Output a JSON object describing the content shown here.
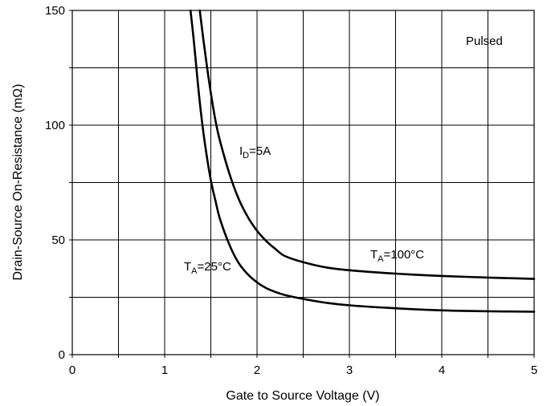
{
  "chart_data": {
    "type": "line",
    "xlabel": "Gate to Source Voltage (V)",
    "ylabel": "Drain-Source On-Resistance (mΩ)",
    "xlim": [
      0,
      5
    ],
    "ylim": [
      0,
      150
    ],
    "x_ticks": [
      "0",
      "1",
      "2",
      "3",
      "4",
      "5"
    ],
    "y_ticks": [
      "0",
      "50",
      "100",
      "150"
    ],
    "grid": true,
    "annotations": {
      "pulsed": "Pulsed",
      "id_main": "I",
      "id_sub": "D",
      "id_rest": "=5A",
      "ta25_main": "T",
      "ta25_sub": "A",
      "ta25_rest": "=25°C",
      "ta100_main": "T",
      "ta100_sub": "A",
      "ta100_rest": "=100°C"
    },
    "series": [
      {
        "color": "#000000",
        "points": [
          [
            1.28,
            150
          ],
          [
            1.32,
            135
          ],
          [
            1.36,
            118
          ],
          [
            1.4,
            103
          ],
          [
            1.45,
            88
          ],
          [
            1.5,
            76
          ],
          [
            1.55,
            67
          ],
          [
            1.6,
            59
          ],
          [
            1.7,
            48
          ],
          [
            1.8,
            40
          ],
          [
            1.9,
            35
          ],
          [
            2.0,
            31.5
          ],
          [
            2.1,
            29
          ],
          [
            2.2,
            27.3
          ],
          [
            2.3,
            26
          ],
          [
            2.5,
            24.3
          ],
          [
            2.75,
            22.6
          ],
          [
            3.0,
            21.5
          ],
          [
            3.5,
            20.2
          ],
          [
            4.0,
            19.3
          ],
          [
            4.5,
            18.9
          ],
          [
            5.0,
            18.7
          ]
        ]
      },
      {
        "color": "#000000",
        "points": [
          [
            1.38,
            150
          ],
          [
            1.42,
            137
          ],
          [
            1.46,
            125
          ],
          [
            1.5,
            114
          ],
          [
            1.55,
            102
          ],
          [
            1.6,
            93
          ],
          [
            1.7,
            79
          ],
          [
            1.8,
            68
          ],
          [
            1.9,
            60
          ],
          [
            2.0,
            54
          ],
          [
            2.1,
            49.5
          ],
          [
            2.2,
            46
          ],
          [
            2.3,
            43
          ],
          [
            2.5,
            40.3
          ],
          [
            2.75,
            38
          ],
          [
            3.0,
            36.8
          ],
          [
            3.5,
            35.3
          ],
          [
            4.0,
            34.3
          ],
          [
            4.5,
            33.6
          ],
          [
            5.0,
            33
          ]
        ]
      }
    ]
  }
}
